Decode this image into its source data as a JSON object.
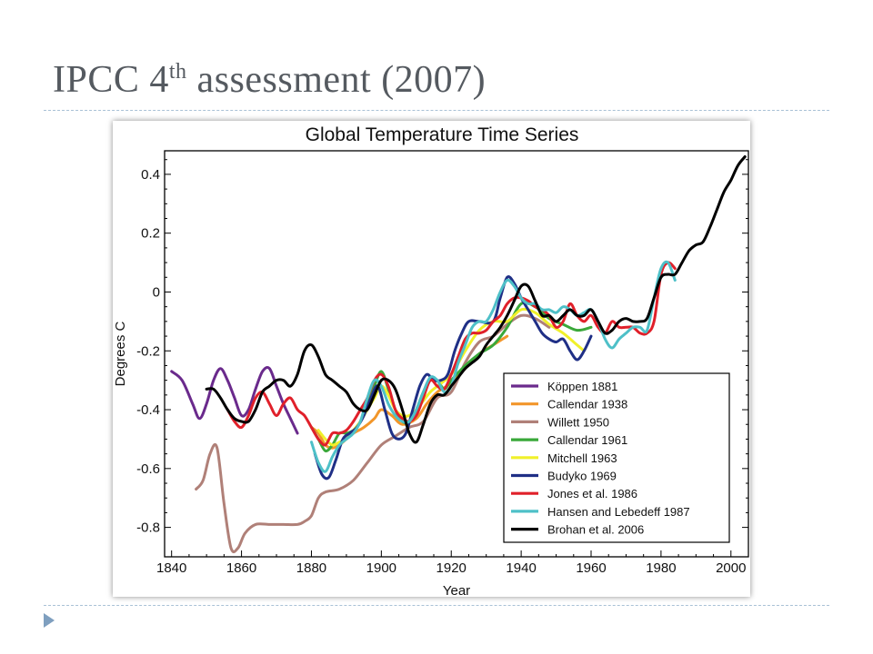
{
  "slide": {
    "title_main": "IPCC 4",
    "title_sup": "th",
    "title_rest": " assessment (2007)"
  },
  "chart_data": {
    "type": "line",
    "title": "Global Temperature Time Series",
    "xlabel": "Year",
    "ylabel": "Degrees C",
    "xlim": [
      1838,
      2005
    ],
    "ylim": [
      -0.9,
      0.48
    ],
    "xticks": [
      1840,
      1860,
      1880,
      1900,
      1920,
      1940,
      1960,
      1980,
      2000
    ],
    "yticks": [
      0.4,
      0.2,
      0,
      -0.2,
      -0.4,
      -0.6,
      -0.8
    ],
    "ytick_labels": [
      "0.4",
      "0.2",
      "0",
      "-0.2",
      "-0.4",
      "-0.6",
      "-0.8"
    ],
    "legend_position": "bottom-right",
    "grid": false,
    "series": [
      {
        "name": "Köppen 1881",
        "color": "#6a2a8c",
        "x": [
          1840,
          1843,
          1846,
          1848,
          1850,
          1852,
          1854,
          1856,
          1858,
          1860,
          1862,
          1864,
          1866,
          1868,
          1870,
          1872,
          1874,
          1876
        ],
        "y": [
          -0.27,
          -0.3,
          -0.38,
          -0.43,
          -0.38,
          -0.3,
          -0.26,
          -0.3,
          -0.36,
          -0.42,
          -0.4,
          -0.33,
          -0.27,
          -0.26,
          -0.32,
          -0.38,
          -0.43,
          -0.48
        ]
      },
      {
        "name": "Callendar 1938",
        "color": "#f2962a",
        "x": [
          1880,
          1882,
          1884,
          1886,
          1888,
          1890,
          1892,
          1895,
          1898,
          1900,
          1903,
          1906,
          1910,
          1913,
          1916,
          1920,
          1924,
          1928,
          1932,
          1936
        ],
        "y": [
          -0.46,
          -0.48,
          -0.52,
          -0.53,
          -0.52,
          -0.5,
          -0.48,
          -0.46,
          -0.43,
          -0.4,
          -0.42,
          -0.45,
          -0.43,
          -0.38,
          -0.34,
          -0.31,
          -0.26,
          -0.21,
          -0.18,
          -0.15
        ]
      },
      {
        "name": "Willett 1950",
        "color": "#b08078",
        "x": [
          1847,
          1849,
          1851,
          1853,
          1855,
          1857,
          1859,
          1861,
          1864,
          1868,
          1872,
          1876,
          1878,
          1880,
          1882,
          1884,
          1888,
          1892,
          1896,
          1900,
          1904,
          1908,
          1912,
          1916,
          1920,
          1924,
          1928,
          1932,
          1936,
          1940,
          1944,
          1948
        ],
        "y": [
          -0.67,
          -0.64,
          -0.55,
          -0.53,
          -0.72,
          -0.87,
          -0.87,
          -0.82,
          -0.79,
          -0.79,
          -0.79,
          -0.79,
          -0.78,
          -0.76,
          -0.7,
          -0.68,
          -0.67,
          -0.64,
          -0.58,
          -0.52,
          -0.49,
          -0.46,
          -0.44,
          -0.36,
          -0.34,
          -0.24,
          -0.17,
          -0.15,
          -0.11,
          -0.08,
          -0.09,
          -0.12
        ]
      },
      {
        "name": "Callendar 1961",
        "color": "#3aa83a",
        "x": [
          1880,
          1882,
          1884,
          1886,
          1888,
          1890,
          1892,
          1894,
          1896,
          1898,
          1900,
          1902,
          1904,
          1906,
          1908,
          1910,
          1912,
          1914,
          1916,
          1918,
          1920,
          1924,
          1928,
          1932,
          1936,
          1940,
          1944,
          1948,
          1952,
          1956,
          1960
        ],
        "y": [
          -0.46,
          -0.5,
          -0.54,
          -0.52,
          -0.48,
          -0.48,
          -0.47,
          -0.44,
          -0.38,
          -0.32,
          -0.27,
          -0.33,
          -0.4,
          -0.44,
          -0.44,
          -0.4,
          -0.34,
          -0.3,
          -0.3,
          -0.33,
          -0.3,
          -0.25,
          -0.21,
          -0.18,
          -0.12,
          -0.04,
          -0.05,
          -0.09,
          -0.11,
          -0.13,
          -0.12
        ]
      },
      {
        "name": "Mitchell 1963",
        "color": "#f0f02a",
        "x": [
          1882,
          1884,
          1886,
          1888,
          1890,
          1892,
          1894,
          1896,
          1898,
          1900,
          1902,
          1904,
          1906,
          1908,
          1910,
          1912,
          1914,
          1916,
          1920,
          1924,
          1928,
          1932,
          1936,
          1940,
          1944,
          1948,
          1952,
          1956,
          1958
        ],
        "y": [
          -0.47,
          -0.5,
          -0.52,
          -0.51,
          -0.5,
          -0.47,
          -0.44,
          -0.4,
          -0.36,
          -0.32,
          -0.35,
          -0.4,
          -0.42,
          -0.42,
          -0.4,
          -0.37,
          -0.34,
          -0.32,
          -0.28,
          -0.2,
          -0.13,
          -0.1,
          -0.1,
          -0.06,
          -0.07,
          -0.11,
          -0.14,
          -0.18,
          -0.2
        ]
      },
      {
        "name": "Budyko 1969",
        "color": "#1f2f86",
        "x": [
          1881,
          1883,
          1885,
          1887,
          1889,
          1891,
          1893,
          1895,
          1897,
          1899,
          1901,
          1903,
          1905,
          1907,
          1909,
          1911,
          1913,
          1915,
          1917,
          1919,
          1921,
          1923,
          1925,
          1928,
          1932,
          1934,
          1936,
          1938,
          1940,
          1942,
          1944,
          1946,
          1948,
          1950,
          1952,
          1954,
          1956,
          1958,
          1960
        ],
        "y": [
          -0.55,
          -0.62,
          -0.63,
          -0.57,
          -0.5,
          -0.48,
          -0.46,
          -0.42,
          -0.36,
          -0.32,
          -0.4,
          -0.48,
          -0.5,
          -0.48,
          -0.4,
          -0.32,
          -0.28,
          -0.3,
          -0.3,
          -0.28,
          -0.2,
          -0.14,
          -0.1,
          -0.1,
          -0.1,
          -0.02,
          0.05,
          0.03,
          -0.02,
          -0.06,
          -0.1,
          -0.14,
          -0.16,
          -0.17,
          -0.16,
          -0.2,
          -0.23,
          -0.2,
          -0.15
        ]
      },
      {
        "name": "Jones et al. 1986",
        "color": "#e0202a",
        "x": [
          1856,
          1858,
          1860,
          1862,
          1864,
          1866,
          1868,
          1870,
          1872,
          1874,
          1876,
          1878,
          1880,
          1882,
          1884,
          1886,
          1888,
          1890,
          1892,
          1894,
          1896,
          1898,
          1900,
          1902,
          1904,
          1906,
          1908,
          1910,
          1912,
          1914,
          1916,
          1918,
          1920,
          1922,
          1924,
          1926,
          1928,
          1930,
          1932,
          1934,
          1936,
          1938,
          1940,
          1942,
          1944,
          1946,
          1948,
          1950,
          1952,
          1954,
          1956,
          1958,
          1960,
          1962,
          1964,
          1966,
          1968,
          1970,
          1972,
          1974,
          1976,
          1978,
          1980,
          1982,
          1984
        ],
        "y": [
          -0.4,
          -0.44,
          -0.46,
          -0.42,
          -0.36,
          -0.34,
          -0.38,
          -0.42,
          -0.38,
          -0.36,
          -0.4,
          -0.42,
          -0.46,
          -0.5,
          -0.52,
          -0.48,
          -0.48,
          -0.47,
          -0.44,
          -0.4,
          -0.36,
          -0.3,
          -0.28,
          -0.32,
          -0.4,
          -0.43,
          -0.44,
          -0.42,
          -0.36,
          -0.3,
          -0.32,
          -0.33,
          -0.28,
          -0.22,
          -0.16,
          -0.14,
          -0.14,
          -0.13,
          -0.1,
          -0.08,
          -0.04,
          -0.02,
          -0.02,
          -0.03,
          -0.05,
          -0.06,
          -0.08,
          -0.12,
          -0.1,
          -0.04,
          -0.08,
          -0.1,
          -0.08,
          -0.12,
          -0.14,
          -0.1,
          -0.12,
          -0.12,
          -0.12,
          -0.14,
          -0.14,
          -0.1,
          0.06,
          0.1,
          0.08
        ]
      },
      {
        "name": "Hansen and Lebedeff 1987",
        "color": "#4ec0c8",
        "x": [
          1880,
          1882,
          1884,
          1886,
          1888,
          1890,
          1892,
          1894,
          1896,
          1898,
          1900,
          1902,
          1904,
          1906,
          1908,
          1910,
          1912,
          1914,
          1916,
          1918,
          1920,
          1922,
          1924,
          1926,
          1928,
          1930,
          1932,
          1934,
          1936,
          1938,
          1940,
          1942,
          1944,
          1946,
          1948,
          1950,
          1952,
          1954,
          1956,
          1958,
          1960,
          1962,
          1964,
          1966,
          1968,
          1970,
          1972,
          1974,
          1976,
          1978,
          1980,
          1982,
          1984
        ],
        "y": [
          -0.51,
          -0.58,
          -0.61,
          -0.56,
          -0.52,
          -0.5,
          -0.48,
          -0.44,
          -0.36,
          -0.3,
          -0.32,
          -0.38,
          -0.42,
          -0.44,
          -0.44,
          -0.4,
          -0.34,
          -0.29,
          -0.3,
          -0.34,
          -0.32,
          -0.24,
          -0.18,
          -0.12,
          -0.1,
          -0.1,
          -0.06,
          0.0,
          0.04,
          0.02,
          -0.02,
          -0.04,
          -0.04,
          -0.06,
          -0.06,
          -0.07,
          -0.05,
          -0.06,
          -0.08,
          -0.07,
          -0.06,
          -0.1,
          -0.16,
          -0.19,
          -0.16,
          -0.14,
          -0.12,
          -0.12,
          -0.13,
          -0.02,
          0.08,
          0.1,
          0.04
        ]
      },
      {
        "name": "Brohan et al. 2006",
        "color": "#000000",
        "x": [
          1850,
          1852,
          1854,
          1856,
          1858,
          1860,
          1862,
          1864,
          1866,
          1868,
          1870,
          1872,
          1874,
          1876,
          1878,
          1880,
          1882,
          1884,
          1886,
          1888,
          1890,
          1892,
          1894,
          1896,
          1898,
          1900,
          1902,
          1904,
          1906,
          1908,
          1910,
          1912,
          1914,
          1916,
          1918,
          1920,
          1922,
          1924,
          1926,
          1928,
          1930,
          1932,
          1934,
          1936,
          1938,
          1940,
          1942,
          1944,
          1946,
          1948,
          1950,
          1952,
          1954,
          1956,
          1958,
          1960,
          1962,
          1964,
          1966,
          1968,
          1970,
          1972,
          1974,
          1976,
          1978,
          1980,
          1982,
          1984,
          1986,
          1988,
          1990,
          1992,
          1994,
          1996,
          1998,
          2000,
          2002,
          2004
        ],
        "y": [
          -0.33,
          -0.33,
          -0.36,
          -0.4,
          -0.43,
          -0.44,
          -0.44,
          -0.4,
          -0.34,
          -0.32,
          -0.3,
          -0.3,
          -0.32,
          -0.28,
          -0.2,
          -0.18,
          -0.22,
          -0.28,
          -0.3,
          -0.32,
          -0.34,
          -0.38,
          -0.4,
          -0.4,
          -0.35,
          -0.3,
          -0.3,
          -0.33,
          -0.4,
          -0.48,
          -0.51,
          -0.45,
          -0.38,
          -0.35,
          -0.35,
          -0.32,
          -0.29,
          -0.26,
          -0.24,
          -0.22,
          -0.18,
          -0.15,
          -0.12,
          -0.08,
          -0.03,
          0.02,
          0.02,
          -0.03,
          -0.08,
          -0.08,
          -0.1,
          -0.08,
          -0.06,
          -0.08,
          -0.08,
          -0.06,
          -0.1,
          -0.14,
          -0.13,
          -0.1,
          -0.09,
          -0.1,
          -0.1,
          -0.09,
          -0.02,
          0.05,
          0.06,
          0.06,
          0.1,
          0.14,
          0.16,
          0.17,
          0.22,
          0.28,
          0.34,
          0.38,
          0.43,
          0.46
        ]
      }
    ]
  }
}
